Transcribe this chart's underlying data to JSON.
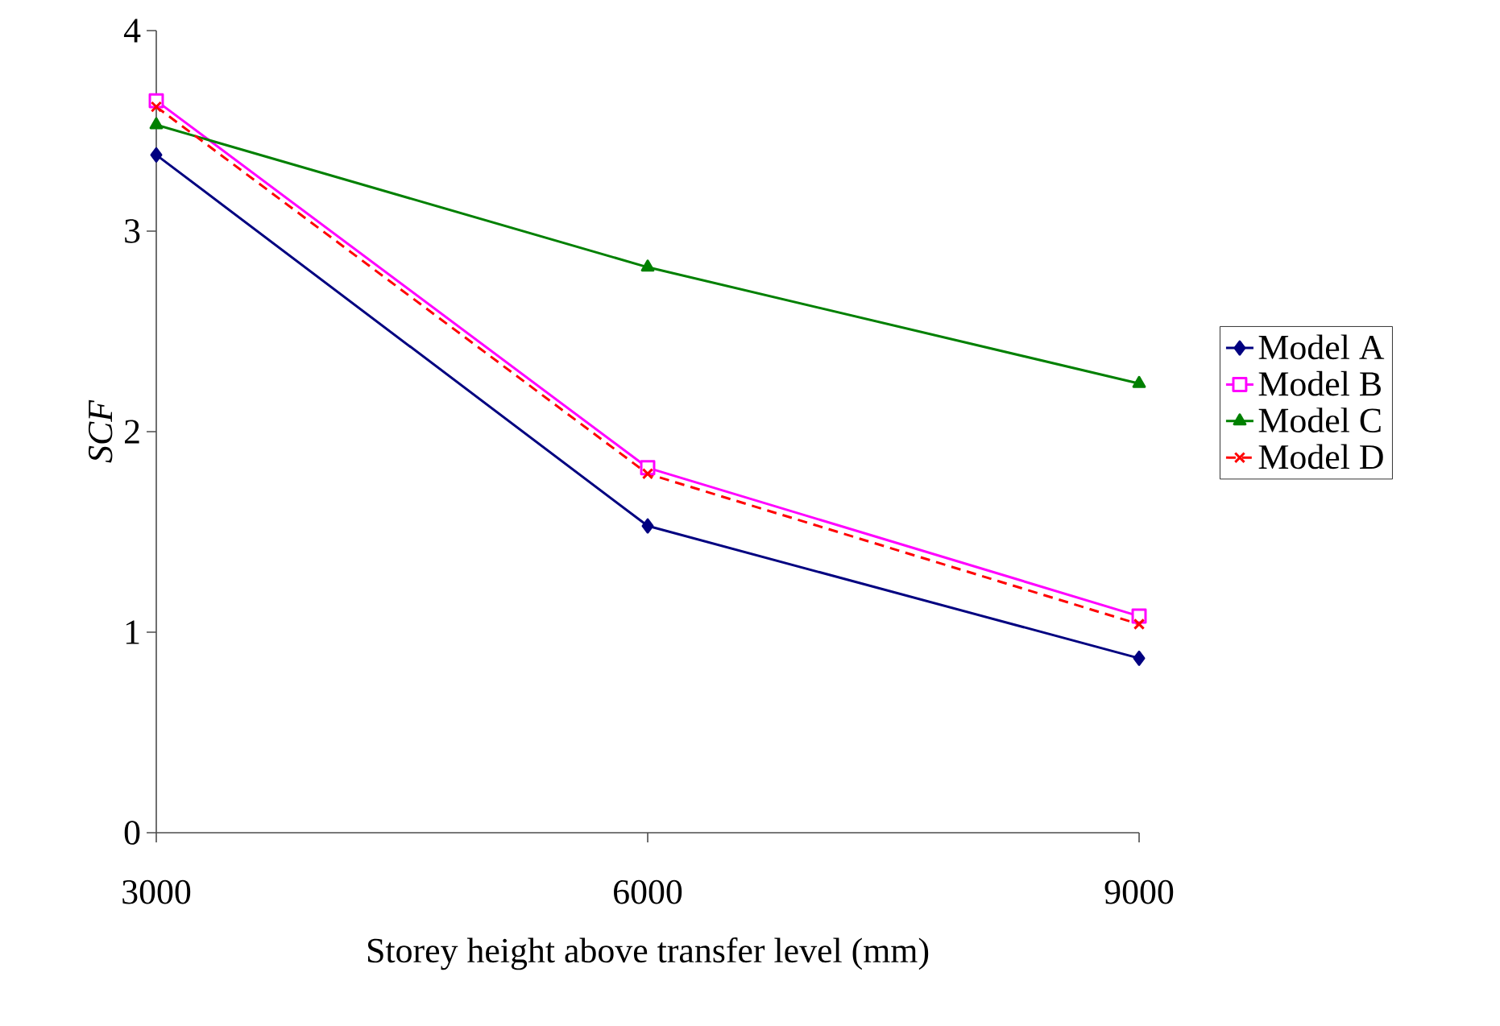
{
  "chart_data": {
    "type": "line",
    "xlabel": "Storey height above transfer level (mm)",
    "ylabel": "SCF",
    "categories": [
      "3000",
      "6000",
      "9000"
    ],
    "ylim": [
      0,
      4
    ],
    "yticks": [
      0,
      1,
      2,
      3,
      4
    ],
    "grid": false,
    "legend": "right",
    "series": [
      {
        "name": "Model A",
        "color": "#000080",
        "marker": "diamond",
        "line_style": "solid",
        "values": [
          3.38,
          1.53,
          0.87
        ]
      },
      {
        "name": "Model B",
        "color": "#ff00ff",
        "marker": "square",
        "line_style": "solid",
        "values": [
          3.65,
          1.82,
          1.08
        ]
      },
      {
        "name": "Model C",
        "color": "#008000",
        "marker": "triangle",
        "line_style": "solid",
        "values": [
          3.53,
          2.82,
          2.24
        ]
      },
      {
        "name": "Model D",
        "color": "#ff0000",
        "marker": "cross",
        "line_style": "dashed",
        "values": [
          3.62,
          1.79,
          1.04
        ]
      }
    ]
  }
}
